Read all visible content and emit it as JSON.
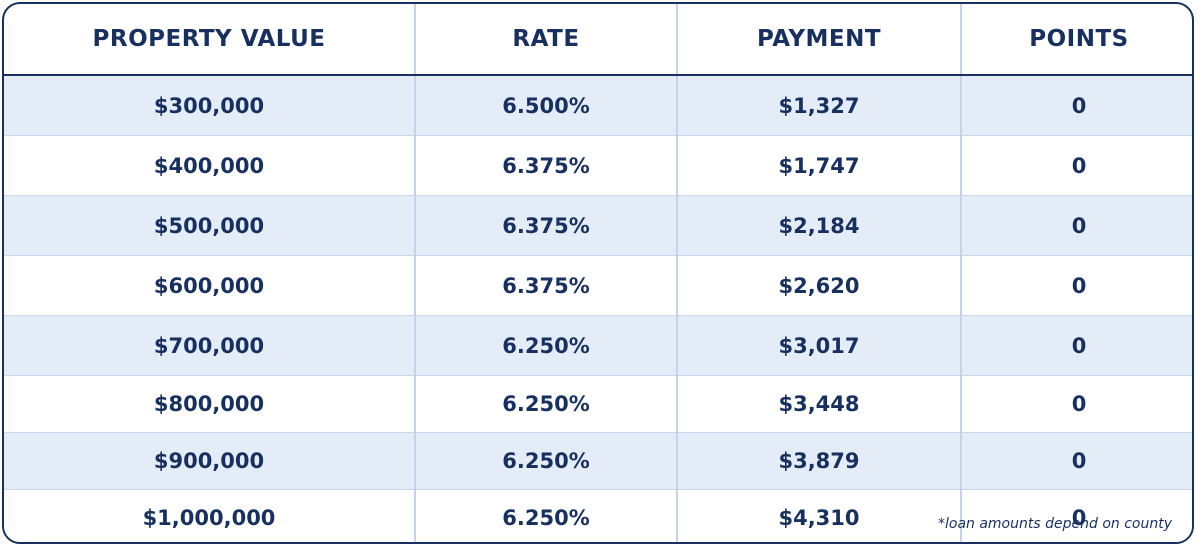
{
  "table": {
    "headers": [
      "PROPERTY VALUE",
      "RATE",
      "PAYMENT",
      "POINTS"
    ],
    "rows": [
      [
        "$300,000",
        "6.500%",
        "$1,327",
        "0"
      ],
      [
        "$400,000",
        "6.375%",
        "$1,747",
        "0"
      ],
      [
        "$500,000",
        "6.375%",
        "$2,184",
        "0"
      ],
      [
        "$600,000",
        "6.375%",
        "$2,620",
        "0"
      ],
      [
        "$700,000",
        "6.250%",
        "$3,017",
        "0"
      ],
      [
        "$800,000",
        "6.250%",
        "$3,448",
        "0"
      ],
      [
        "$900,000",
        "6.250%",
        "$3,879",
        "0"
      ],
      [
        "$1,000,000",
        "6.250%",
        "$4,310",
        "0"
      ]
    ]
  },
  "footnote": "*loan amounts depend on county",
  "colors": {
    "text": "#17305f",
    "row_shade": "#e3ecf7",
    "divider": "#c3d4ea",
    "border": "#17305f"
  }
}
